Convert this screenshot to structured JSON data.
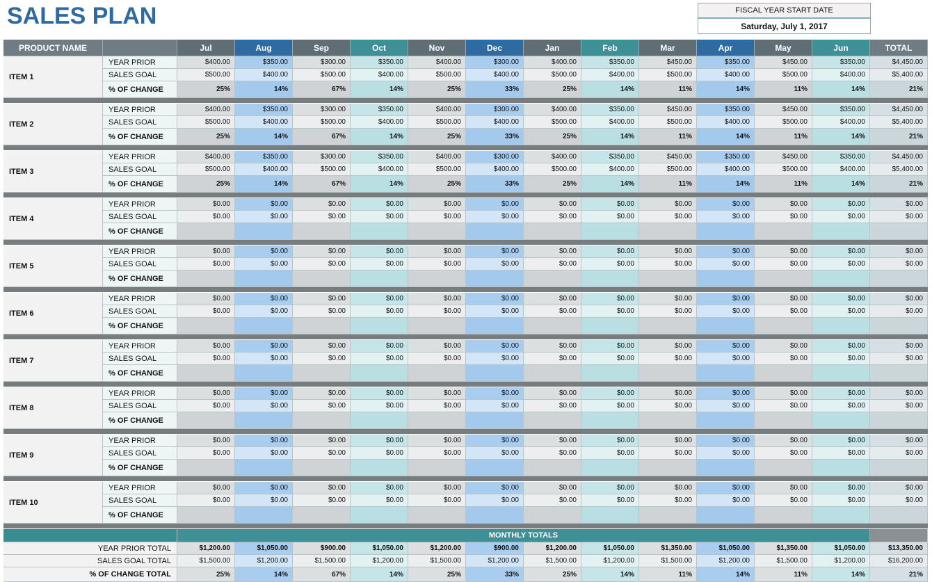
{
  "title": "SALES PLAN",
  "fiscal": {
    "label": "FISCAL YEAR START DATE",
    "value": "Saturday, July 1, 2017"
  },
  "table": {
    "header": [
      "PRODUCT NAME",
      "Jul",
      "Aug",
      "Sep",
      "Oct",
      "Nov",
      "Dec",
      "Jan",
      "Feb",
      "Mar",
      "Apr",
      "May",
      "Jun",
      "TOTAL"
    ],
    "items": [
      {
        "name": "ITEM 1",
        "rows": [
          {
            "label": "YEAR PRIOR",
            "cells": [
              "$400.00",
              "$350.00",
              "$300.00",
              "$350.00",
              "$400.00",
              "$300.00",
              "$400.00",
              "$350.00",
              "$450.00",
              "$350.00",
              "$450.00",
              "$350.00",
              "$4,450.00"
            ]
          },
          {
            "label": "SALES GOAL",
            "cells": [
              "$500.00",
              "$400.00",
              "$500.00",
              "$400.00",
              "$500.00",
              "$400.00",
              "$500.00",
              "$400.00",
              "$500.00",
              "$400.00",
              "$500.00",
              "$400.00",
              "$5,400.00"
            ]
          },
          {
            "label": "% OF CHANGE",
            "cells": [
              "25%",
              "14%",
              "67%",
              "14%",
              "25%",
              "33%",
              "25%",
              "14%",
              "11%",
              "14%",
              "11%",
              "14%",
              "21%"
            ]
          }
        ]
      },
      {
        "name": "ITEM 2",
        "rows": [
          {
            "label": "YEAR PRIOR",
            "cells": [
              "$400.00",
              "$350.00",
              "$300.00",
              "$350.00",
              "$400.00",
              "$300.00",
              "$400.00",
              "$350.00",
              "$450.00",
              "$350.00",
              "$450.00",
              "$350.00",
              "$4,450.00"
            ]
          },
          {
            "label": "SALES GOAL",
            "cells": [
              "$500.00",
              "$400.00",
              "$500.00",
              "$400.00",
              "$500.00",
              "$400.00",
              "$500.00",
              "$400.00",
              "$500.00",
              "$400.00",
              "$500.00",
              "$400.00",
              "$5,400.00"
            ]
          },
          {
            "label": "% OF CHANGE",
            "cells": [
              "25%",
              "14%",
              "67%",
              "14%",
              "25%",
              "33%",
              "25%",
              "14%",
              "11%",
              "14%",
              "11%",
              "14%",
              "21%"
            ]
          }
        ]
      },
      {
        "name": "ITEM 3",
        "rows": [
          {
            "label": "YEAR PRIOR",
            "cells": [
              "$400.00",
              "$350.00",
              "$300.00",
              "$350.00",
              "$400.00",
              "$300.00",
              "$400.00",
              "$350.00",
              "$450.00",
              "$350.00",
              "$450.00",
              "$350.00",
              "$4,450.00"
            ]
          },
          {
            "label": "SALES GOAL",
            "cells": [
              "$500.00",
              "$400.00",
              "$500.00",
              "$400.00",
              "$500.00",
              "$400.00",
              "$500.00",
              "$400.00",
              "$500.00",
              "$400.00",
              "$500.00",
              "$400.00",
              "$5,400.00"
            ]
          },
          {
            "label": "% OF CHANGE",
            "cells": [
              "25%",
              "14%",
              "67%",
              "14%",
              "25%",
              "33%",
              "25%",
              "14%",
              "11%",
              "14%",
              "11%",
              "14%",
              "21%"
            ]
          }
        ]
      },
      {
        "name": "ITEM 4",
        "rows": [
          {
            "label": "YEAR PRIOR",
            "cells": [
              "$0.00",
              "$0.00",
              "$0.00",
              "$0.00",
              "$0.00",
              "$0.00",
              "$0.00",
              "$0.00",
              "$0.00",
              "$0.00",
              "$0.00",
              "$0.00",
              "$0.00"
            ]
          },
          {
            "label": "SALES GOAL",
            "cells": [
              "$0.00",
              "$0.00",
              "$0.00",
              "$0.00",
              "$0.00",
              "$0.00",
              "$0.00",
              "$0.00",
              "$0.00",
              "$0.00",
              "$0.00",
              "$0.00",
              "$0.00"
            ]
          },
          {
            "label": "% OF CHANGE"
          }
        ]
      },
      {
        "name": "ITEM 5",
        "rows": [
          {
            "label": "YEAR PRIOR",
            "cells": [
              "$0.00",
              "$0.00",
              "$0.00",
              "$0.00",
              "$0.00",
              "$0.00",
              "$0.00",
              "$0.00",
              "$0.00",
              "$0.00",
              "$0.00",
              "$0.00",
              "$0.00"
            ]
          },
          {
            "label": "SALES GOAL",
            "cells": [
              "$0.00",
              "$0.00",
              "$0.00",
              "$0.00",
              "$0.00",
              "$0.00",
              "$0.00",
              "$0.00",
              "$0.00",
              "$0.00",
              "$0.00",
              "$0.00",
              "$0.00"
            ]
          },
          {
            "label": "% OF CHANGE"
          }
        ]
      },
      {
        "name": "ITEM 6",
        "rows": [
          {
            "label": "YEAR PRIOR",
            "cells": [
              "$0.00",
              "$0.00",
              "$0.00",
              "$0.00",
              "$0.00",
              "$0.00",
              "$0.00",
              "$0.00",
              "$0.00",
              "$0.00",
              "$0.00",
              "$0.00",
              "$0.00"
            ]
          },
          {
            "label": "SALES GOAL",
            "cells": [
              "$0.00",
              "$0.00",
              "$0.00",
              "$0.00",
              "$0.00",
              "$0.00",
              "$0.00",
              "$0.00",
              "$0.00",
              "$0.00",
              "$0.00",
              "$0.00",
              "$0.00"
            ]
          },
          {
            "label": "% OF CHANGE"
          }
        ]
      },
      {
        "name": "ITEM 7",
        "rows": [
          {
            "label": "YEAR PRIOR",
            "cells": [
              "$0.00",
              "$0.00",
              "$0.00",
              "$0.00",
              "$0.00",
              "$0.00",
              "$0.00",
              "$0.00",
              "$0.00",
              "$0.00",
              "$0.00",
              "$0.00",
              "$0.00"
            ]
          },
          {
            "label": "SALES GOAL",
            "cells": [
              "$0.00",
              "$0.00",
              "$0.00",
              "$0.00",
              "$0.00",
              "$0.00",
              "$0.00",
              "$0.00",
              "$0.00",
              "$0.00",
              "$0.00",
              "$0.00",
              "$0.00"
            ]
          },
          {
            "label": "% OF CHANGE"
          }
        ]
      },
      {
        "name": "ITEM 8",
        "rows": [
          {
            "label": "YEAR PRIOR",
            "cells": [
              "$0.00",
              "$0.00",
              "$0.00",
              "$0.00",
              "$0.00",
              "$0.00",
              "$0.00",
              "$0.00",
              "$0.00",
              "$0.00",
              "$0.00",
              "$0.00",
              "$0.00"
            ]
          },
          {
            "label": "SALES GOAL",
            "cells": [
              "$0.00",
              "$0.00",
              "$0.00",
              "$0.00",
              "$0.00",
              "$0.00",
              "$0.00",
              "$0.00",
              "$0.00",
              "$0.00",
              "$0.00",
              "$0.00",
              "$0.00"
            ]
          },
          {
            "label": "% OF CHANGE"
          }
        ]
      },
      {
        "name": "ITEM 9",
        "rows": [
          {
            "label": "YEAR PRIOR",
            "cells": [
              "$0.00",
              "$0.00",
              "$0.00",
              "$0.00",
              "$0.00",
              "$0.00",
              "$0.00",
              "$0.00",
              "$0.00",
              "$0.00",
              "$0.00",
              "$0.00",
              "$0.00"
            ]
          },
          {
            "label": "SALES GOAL",
            "cells": [
              "$0.00",
              "$0.00",
              "$0.00",
              "$0.00",
              "$0.00",
              "$0.00",
              "$0.00",
              "$0.00",
              "$0.00",
              "$0.00",
              "$0.00",
              "$0.00",
              "$0.00"
            ]
          },
          {
            "label": "% OF CHANGE"
          }
        ]
      },
      {
        "name": "ITEM 10",
        "rows": [
          {
            "label": "YEAR PRIOR",
            "cells": [
              "$0.00",
              "$0.00",
              "$0.00",
              "$0.00",
              "$0.00",
              "$0.00",
              "$0.00",
              "$0.00",
              "$0.00",
              "$0.00",
              "$0.00",
              "$0.00",
              "$0.00"
            ]
          },
          {
            "label": "SALES GOAL",
            "cells": [
              "$0.00",
              "$0.00",
              "$0.00",
              "$0.00",
              "$0.00",
              "$0.00",
              "$0.00",
              "$0.00",
              "$0.00",
              "$0.00",
              "$0.00",
              "$0.00",
              "$0.00"
            ]
          },
          {
            "label": "% OF CHANGE"
          }
        ]
      }
    ],
    "totals": {
      "title": "MONTHLY TOTALS",
      "rows": [
        {
          "label": "YEAR PRIOR TOTAL",
          "cells": [
            "$1,200.00",
            "$1,050.00",
            "$900.00",
            "$1,050.00",
            "$1,200.00",
            "$900.00",
            "$1,200.00",
            "$1,050.00",
            "$1,350.00",
            "$1,050.00",
            "$1,350.00",
            "$1,050.00",
            "$13,350.00"
          ]
        },
        {
          "label": "SALES GOAL TOTAL",
          "cells": [
            "$1,500.00",
            "$1,200.00",
            "$1,500.00",
            "$1,200.00",
            "$1,500.00",
            "$1,200.00",
            "$1,500.00",
            "$1,200.00",
            "$1,500.00",
            "$1,200.00",
            "$1,500.00",
            "$1,200.00",
            "$16,200.00"
          ]
        },
        {
          "label": "% OF CHANGE TOTAL",
          "cells": [
            "25%",
            "14%",
            "67%",
            "14%",
            "25%",
            "33%",
            "25%",
            "14%",
            "11%",
            "14%",
            "11%",
            "14%",
            "21%"
          ]
        }
      ]
    }
  }
}
